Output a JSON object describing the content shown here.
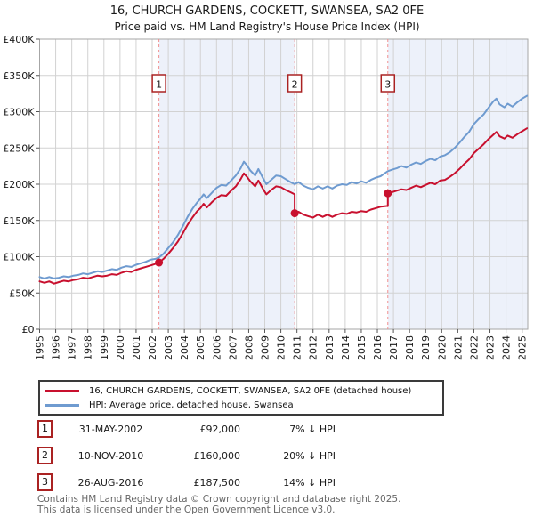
{
  "header": {
    "title": "16, CHURCH GARDENS, COCKETT, SWANSEA, SA2 0FE",
    "subtitle": "Price paid vs. HM Land Registry's House Price Index (HPI)"
  },
  "legend": [
    {
      "key": "price-paid",
      "color": "#c8102e",
      "label": "16, CHURCH GARDENS, COCKETT, SWANSEA, SA2 0FE (detached house)"
    },
    {
      "key": "hpi",
      "color": "#6f9bd0",
      "label": "HPI: Average price, detached house, Swansea"
    }
  ],
  "sales_table": [
    {
      "num": "1",
      "date": "31-MAY-2002",
      "price": "£92,000",
      "hpi_diff": "7% ↓ HPI"
    },
    {
      "num": "2",
      "date": "10-NOV-2010",
      "price": "£160,000",
      "hpi_diff": "20% ↓ HPI"
    },
    {
      "num": "3",
      "date": "26-AUG-2016",
      "price": "£187,500",
      "hpi_diff": "14% ↓ HPI"
    }
  ],
  "footer": {
    "line1": "Contains HM Land Registry data © Crown copyright and database right 2025.",
    "line2": "This data is licensed under the Open Government Licence v3.0."
  },
  "chart_data": {
    "type": "line",
    "title": "16, CHURCH GARDENS, COCKETT, SWANSEA, SA2 0FE",
    "subtitle": "Price paid vs. HM Land Registry's House Price Index (HPI)",
    "xlabel": "",
    "ylabel": "",
    "x_range": [
      1995,
      2025.35
    ],
    "y_range": [
      0,
      400000
    ],
    "grid": true,
    "legend_position": "bottom",
    "x_ticks": [
      1995,
      1996,
      1997,
      1998,
      1999,
      2000,
      2001,
      2002,
      2003,
      2004,
      2005,
      2006,
      2007,
      2008,
      2009,
      2010,
      2011,
      2012,
      2013,
      2014,
      2015,
      2016,
      2017,
      2018,
      2019,
      2020,
      2021,
      2022,
      2023,
      2024,
      2025
    ],
    "y_ticks": [
      {
        "value": 0,
        "label": "£0"
      },
      {
        "value": 50000,
        "label": "£50K"
      },
      {
        "value": 100000,
        "label": "£100K"
      },
      {
        "value": 150000,
        "label": "£150K"
      },
      {
        "value": 200000,
        "label": "£200K"
      },
      {
        "value": 250000,
        "label": "£250K"
      },
      {
        "value": 300000,
        "label": "£300K"
      },
      {
        "value": 350000,
        "label": "£350K"
      },
      {
        "value": 400000,
        "label": "£400K"
      }
    ],
    "shaded_bands": [
      [
        2002.42,
        2010.86
      ],
      [
        2016.65,
        2025.35
      ]
    ],
    "sale_events": [
      {
        "label": "1",
        "x": 2002.42,
        "y": 92000
      },
      {
        "label": "2",
        "x": 2010.86,
        "y": 160000
      },
      {
        "label": "3",
        "x": 2016.65,
        "y": 187500
      }
    ],
    "series": [
      {
        "name": "HPI: Average price, detached house, Swansea",
        "color": "#6f9bd0",
        "points": [
          [
            1995.0,
            72000
          ],
          [
            1995.3,
            70000
          ],
          [
            1995.6,
            72000
          ],
          [
            1995.9,
            70000
          ],
          [
            1996.2,
            71000
          ],
          [
            1996.5,
            73000
          ],
          [
            1996.8,
            72000
          ],
          [
            1997.1,
            74000
          ],
          [
            1997.4,
            75000
          ],
          [
            1997.7,
            77000
          ],
          [
            1998.0,
            76000
          ],
          [
            1998.3,
            78000
          ],
          [
            1998.6,
            80000
          ],
          [
            1998.9,
            79000
          ],
          [
            1999.2,
            81000
          ],
          [
            1999.5,
            83000
          ],
          [
            1999.8,
            82000
          ],
          [
            2000.1,
            85000
          ],
          [
            2000.4,
            87000
          ],
          [
            2000.7,
            86000
          ],
          [
            2001.0,
            89000
          ],
          [
            2001.3,
            91000
          ],
          [
            2001.6,
            93000
          ],
          [
            2001.9,
            96000
          ],
          [
            2002.2,
            97000
          ],
          [
            2002.42,
            99000
          ],
          [
            2002.7,
            104000
          ],
          [
            2003.0,
            112000
          ],
          [
            2003.3,
            120000
          ],
          [
            2003.6,
            130000
          ],
          [
            2003.9,
            142000
          ],
          [
            2004.2,
            155000
          ],
          [
            2004.5,
            166000
          ],
          [
            2004.8,
            175000
          ],
          [
            2005.0,
            180000
          ],
          [
            2005.2,
            186000
          ],
          [
            2005.4,
            181000
          ],
          [
            2005.7,
            188000
          ],
          [
            2006.0,
            195000
          ],
          [
            2006.3,
            199000
          ],
          [
            2006.6,
            198000
          ],
          [
            2006.9,
            205000
          ],
          [
            2007.2,
            212000
          ],
          [
            2007.5,
            222000
          ],
          [
            2007.7,
            231000
          ],
          [
            2007.9,
            226000
          ],
          [
            2008.1,
            219000
          ],
          [
            2008.4,
            212000
          ],
          [
            2008.6,
            221000
          ],
          [
            2008.9,
            208000
          ],
          [
            2009.1,
            200000
          ],
          [
            2009.4,
            206000
          ],
          [
            2009.7,
            212000
          ],
          [
            2010.0,
            211000
          ],
          [
            2010.3,
            207000
          ],
          [
            2010.6,
            203000
          ],
          [
            2010.86,
            200000
          ],
          [
            2011.1,
            203000
          ],
          [
            2011.4,
            198000
          ],
          [
            2011.7,
            195000
          ],
          [
            2012.0,
            193000
          ],
          [
            2012.3,
            197000
          ],
          [
            2012.6,
            194000
          ],
          [
            2012.9,
            197000
          ],
          [
            2013.2,
            194000
          ],
          [
            2013.5,
            198000
          ],
          [
            2013.8,
            200000
          ],
          [
            2014.1,
            199000
          ],
          [
            2014.4,
            203000
          ],
          [
            2014.7,
            201000
          ],
          [
            2015.0,
            204000
          ],
          [
            2015.3,
            202000
          ],
          [
            2015.6,
            206000
          ],
          [
            2015.9,
            209000
          ],
          [
            2016.2,
            211000
          ],
          [
            2016.65,
            218000
          ],
          [
            2016.9,
            220000
          ],
          [
            2017.2,
            222000
          ],
          [
            2017.5,
            225000
          ],
          [
            2017.8,
            223000
          ],
          [
            2018.1,
            227000
          ],
          [
            2018.4,
            230000
          ],
          [
            2018.7,
            228000
          ],
          [
            2019.0,
            232000
          ],
          [
            2019.3,
            235000
          ],
          [
            2019.6,
            233000
          ],
          [
            2019.9,
            238000
          ],
          [
            2020.2,
            240000
          ],
          [
            2020.5,
            244000
          ],
          [
            2020.8,
            250000
          ],
          [
            2021.1,
            257000
          ],
          [
            2021.4,
            265000
          ],
          [
            2021.7,
            272000
          ],
          [
            2022.0,
            283000
          ],
          [
            2022.3,
            290000
          ],
          [
            2022.6,
            296000
          ],
          [
            2022.9,
            305000
          ],
          [
            2023.2,
            314000
          ],
          [
            2023.4,
            318000
          ],
          [
            2023.6,
            310000
          ],
          [
            2023.9,
            306000
          ],
          [
            2024.1,
            311000
          ],
          [
            2024.4,
            307000
          ],
          [
            2024.7,
            313000
          ],
          [
            2025.0,
            318000
          ],
          [
            2025.3,
            322000
          ]
        ]
      },
      {
        "name": "16, CHURCH GARDENS, COCKETT, SWANSEA, SA2 0FE (detached house)",
        "color": "#c8102e",
        "points": [
          [
            1995.0,
            66000
          ],
          [
            1995.3,
            64000
          ],
          [
            1995.6,
            66000
          ],
          [
            1995.9,
            63000
          ],
          [
            1996.2,
            65000
          ],
          [
            1996.5,
            67000
          ],
          [
            1996.8,
            66000
          ],
          [
            1997.1,
            68000
          ],
          [
            1997.4,
            69000
          ],
          [
            1997.7,
            71000
          ],
          [
            1998.0,
            70000
          ],
          [
            1998.3,
            72000
          ],
          [
            1998.6,
            74000
          ],
          [
            1998.9,
            73000
          ],
          [
            1999.2,
            74000
          ],
          [
            1999.5,
            76000
          ],
          [
            1999.8,
            75000
          ],
          [
            2000.1,
            78000
          ],
          [
            2000.4,
            80000
          ],
          [
            2000.7,
            79000
          ],
          [
            2001.0,
            82000
          ],
          [
            2001.3,
            84000
          ],
          [
            2001.6,
            86000
          ],
          [
            2001.9,
            88000
          ],
          [
            2002.2,
            90000
          ],
          [
            2002.42,
            92000
          ],
          [
            2002.7,
            97000
          ],
          [
            2003.0,
            104000
          ],
          [
            2003.3,
            112000
          ],
          [
            2003.6,
            121000
          ],
          [
            2003.9,
            132000
          ],
          [
            2004.2,
            144000
          ],
          [
            2004.5,
            154000
          ],
          [
            2004.8,
            163000
          ],
          [
            2005.0,
            167000
          ],
          [
            2005.2,
            173000
          ],
          [
            2005.4,
            168000
          ],
          [
            2005.7,
            175000
          ],
          [
            2006.0,
            181000
          ],
          [
            2006.3,
            185000
          ],
          [
            2006.6,
            184000
          ],
          [
            2006.9,
            191000
          ],
          [
            2007.2,
            197000
          ],
          [
            2007.5,
            207000
          ],
          [
            2007.7,
            215000
          ],
          [
            2007.9,
            210000
          ],
          [
            2008.1,
            204000
          ],
          [
            2008.4,
            197000
          ],
          [
            2008.6,
            205000
          ],
          [
            2008.9,
            193000
          ],
          [
            2009.1,
            186000
          ],
          [
            2009.4,
            192000
          ],
          [
            2009.7,
            197000
          ],
          [
            2010.0,
            196000
          ],
          [
            2010.3,
            192000
          ],
          [
            2010.6,
            189000
          ],
          [
            2010.86,
            186000
          ],
          [
            2010.86,
            160000
          ],
          [
            2011.1,
            162000
          ],
          [
            2011.4,
            158000
          ],
          [
            2011.7,
            156000
          ],
          [
            2012.0,
            154000
          ],
          [
            2012.3,
            158000
          ],
          [
            2012.6,
            155000
          ],
          [
            2012.9,
            158000
          ],
          [
            2013.2,
            155000
          ],
          [
            2013.5,
            158000
          ],
          [
            2013.8,
            160000
          ],
          [
            2014.1,
            159000
          ],
          [
            2014.4,
            162000
          ],
          [
            2014.7,
            161000
          ],
          [
            2015.0,
            163000
          ],
          [
            2015.3,
            162000
          ],
          [
            2015.6,
            165000
          ],
          [
            2015.9,
            167000
          ],
          [
            2016.2,
            169000
          ],
          [
            2016.65,
            170000
          ],
          [
            2016.65,
            187500
          ],
          [
            2016.9,
            189000
          ],
          [
            2017.2,
            191000
          ],
          [
            2017.5,
            193000
          ],
          [
            2017.8,
            192000
          ],
          [
            2018.1,
            195000
          ],
          [
            2018.4,
            198000
          ],
          [
            2018.7,
            196000
          ],
          [
            2019.0,
            199000
          ],
          [
            2019.3,
            202000
          ],
          [
            2019.6,
            200000
          ],
          [
            2019.9,
            205000
          ],
          [
            2020.2,
            206000
          ],
          [
            2020.5,
            210000
          ],
          [
            2020.8,
            215000
          ],
          [
            2021.1,
            221000
          ],
          [
            2021.4,
            228000
          ],
          [
            2021.7,
            234000
          ],
          [
            2022.0,
            243000
          ],
          [
            2022.3,
            249000
          ],
          [
            2022.6,
            255000
          ],
          [
            2022.9,
            262000
          ],
          [
            2023.2,
            268000
          ],
          [
            2023.4,
            272000
          ],
          [
            2023.6,
            266000
          ],
          [
            2023.9,
            263000
          ],
          [
            2024.1,
            267000
          ],
          [
            2024.4,
            264000
          ],
          [
            2024.7,
            269000
          ],
          [
            2025.0,
            273000
          ],
          [
            2025.3,
            277000
          ]
        ]
      }
    ],
    "colors": {
      "price_paid": "#c8102e",
      "hpi": "#6f9bd0",
      "shaded_band": "#edf1fa",
      "grid": "#d2d2d2",
      "plot_border": "#a6a6a6",
      "sale_dash_line": "#f08f8f",
      "sale_badge_border": "#aa2222",
      "tick_text": "#1a1a1a"
    }
  }
}
